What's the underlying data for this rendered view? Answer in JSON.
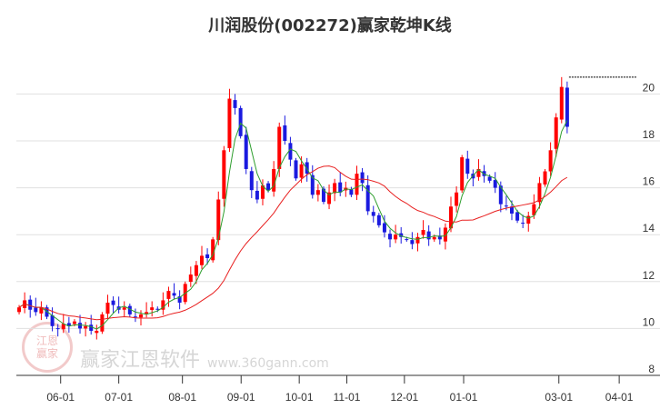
{
  "title": "川润股份(002272)赢家乾坤K线",
  "watermark": {
    "brand": "赢家江恩软件",
    "url": "www.360gann.com",
    "seal": "江恩赢家"
  },
  "colors": {
    "up": "#ff0000",
    "down": "#1a1adf",
    "ma_short": "#2e9e2e",
    "ma_long": "#e82020",
    "grid": "#e0e0e0"
  },
  "chart_data": {
    "type": "candlestick",
    "title": "川润股份(002272)赢家乾坤K线",
    "ylim": [
      8,
      21.8
    ],
    "yticks": [
      8,
      10,
      12,
      14,
      16,
      18,
      20
    ],
    "xticks": [
      {
        "label": "06-01",
        "index": 8
      },
      {
        "label": "07-01",
        "index": 18.5
      },
      {
        "label": "08-01",
        "index": 30
      },
      {
        "label": "09-01",
        "index": 40.6
      },
      {
        "label": "10-01",
        "index": 51.1
      },
      {
        "label": "11-01",
        "index": 59.7
      },
      {
        "label": "12-01",
        "index": 70.1
      },
      {
        "label": "01-01",
        "index": 80.8
      },
      {
        "label": "03-01",
        "index": 98
      },
      {
        "label": "04-01",
        "index": 108.9
      }
    ],
    "slots": 112,
    "ma_periods": {
      "short": 4,
      "long": 20
    },
    "closes": [
      10.9,
      11.2,
      10.8,
      10.7,
      10.9,
      10.5,
      10.1,
      10.0,
      10.2,
      10.1,
      10.3,
      10.0,
      10.1,
      9.9,
      9.9,
      10.6,
      11.1,
      11.0,
      10.8,
      10.9,
      10.6,
      10.5,
      10.6,
      10.7,
      10.9,
      10.8,
      11.2,
      11.6,
      11.4,
      11.1,
      11.9,
      12.3,
      12.7,
      13.1,
      13.0,
      13.8,
      15.5,
      17.6,
      19.8,
      19.4,
      18.2,
      16.8,
      15.9,
      15.5,
      16.1,
      15.9,
      16.8,
      18.6,
      18.0,
      17.2,
      16.4,
      17.0,
      16.6,
      15.7,
      15.9,
      15.4,
      15.8,
      16.2,
      15.8,
      16.0,
      15.7,
      16.6,
      16.2,
      15.0,
      14.8,
      14.4,
      14.1,
      13.8,
      14.0,
      13.9,
      13.8,
      13.6,
      13.9,
      14.2,
      13.8,
      13.9,
      13.8,
      14.3,
      15.2,
      15.8,
      17.3,
      16.6,
      16.4,
      16.8,
      16.5,
      16.3,
      16.0,
      15.3,
      15.2,
      14.9,
      14.6,
      14.5,
      14.8,
      15.3,
      16.2,
      16.7,
      17.6,
      19.0,
      20.3,
      18.6
    ]
  }
}
